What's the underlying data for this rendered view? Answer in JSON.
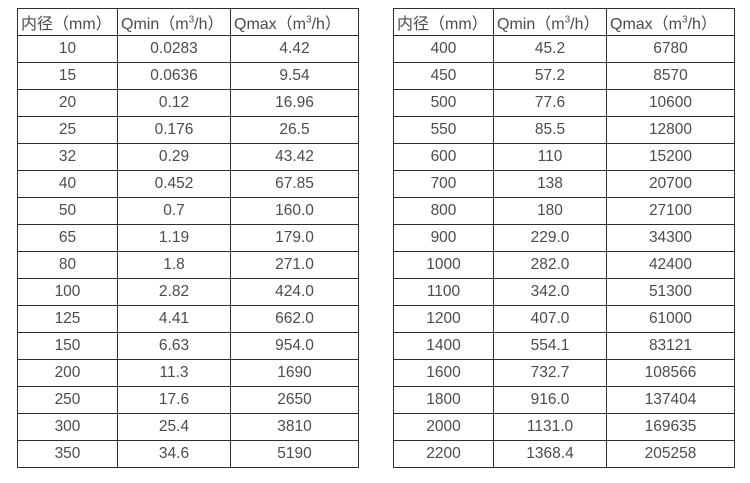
{
  "colors": {
    "background": "#ffffff",
    "border": "#2e2e2e",
    "text": "#4c4c4c"
  },
  "chart_data": [
    {
      "type": "table",
      "name": "flow-rate-table-small-diameters",
      "headers": [
        "内径（mm）",
        "Qmin（m³/h）",
        "Qmax（m³/h）"
      ],
      "rows": [
        [
          "10",
          "0.0283",
          "4.42"
        ],
        [
          "15",
          "0.0636",
          "9.54"
        ],
        [
          "20",
          "0.12",
          "16.96"
        ],
        [
          "25",
          "0.176",
          "26.5"
        ],
        [
          "32",
          "0.29",
          "43.42"
        ],
        [
          "40",
          "0.452",
          "67.85"
        ],
        [
          "50",
          "0.7",
          "160.0"
        ],
        [
          "65",
          "1.19",
          "179.0"
        ],
        [
          "80",
          "1.8",
          "271.0"
        ],
        [
          "100",
          "2.82",
          "424.0"
        ],
        [
          "125",
          "4.41",
          "662.0"
        ],
        [
          "150",
          "6.63",
          "954.0"
        ],
        [
          "200",
          "11.3",
          "1690"
        ],
        [
          "250",
          "17.6",
          "2650"
        ],
        [
          "300",
          "25.4",
          "3810"
        ],
        [
          "350",
          "34.6",
          "5190"
        ]
      ]
    },
    {
      "type": "table",
      "name": "flow-rate-table-large-diameters",
      "headers": [
        "内径（mm）",
        "Qmin（m³/h）",
        "Qmax（m³/h）"
      ],
      "rows": [
        [
          "400",
          "45.2",
          "6780"
        ],
        [
          "450",
          "57.2",
          "8570"
        ],
        [
          "500",
          "77.6",
          "10600"
        ],
        [
          "550",
          "85.5",
          "12800"
        ],
        [
          "600",
          "110",
          "15200"
        ],
        [
          "700",
          "138",
          "20700"
        ],
        [
          "800",
          "180",
          "27100"
        ],
        [
          "900",
          "229.0",
          "34300"
        ],
        [
          "1000",
          "282.0",
          "42400"
        ],
        [
          "1100",
          "342.0",
          "51300"
        ],
        [
          "1200",
          "407.0",
          "61000"
        ],
        [
          "1400",
          "554.1",
          "83121"
        ],
        [
          "1600",
          "732.7",
          "108566"
        ],
        [
          "1800",
          "916.0",
          "137404"
        ],
        [
          "2000",
          "1131.0",
          "169635"
        ],
        [
          "2200",
          "1368.4",
          "205258"
        ]
      ]
    }
  ]
}
